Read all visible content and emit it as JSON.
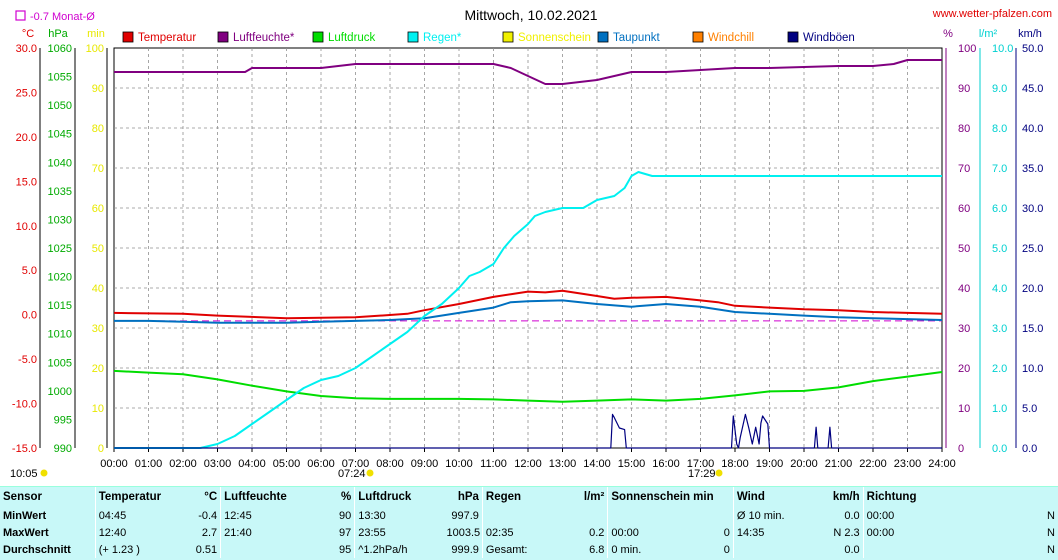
{
  "header": {
    "title": "Mittwoch, 10.02.2021",
    "site": "www.wetter-pfalzen.com",
    "frost_note": "-0.7 Monat-Ø",
    "time_left": "10:05",
    "sunrise": "07:24",
    "sunset": "17:29"
  },
  "colors": {
    "temperature": "#e00000",
    "humidity": "#800080",
    "pressure": "#00dd00",
    "rain": "#00f0f0",
    "sunshine": "#f0f000",
    "dewpoint": "#0070c0",
    "windchill": "#ff8000",
    "gusts": "#000080",
    "grid": "#909090",
    "stats_bg": "#c8f8f8"
  },
  "chart_data": {
    "type": "line",
    "title": "Mittwoch, 10.02.2021",
    "x_ticks": [
      "00:00",
      "01:00",
      "02:00",
      "03:00",
      "04:00",
      "05:00",
      "06:00",
      "07:00",
      "08:00",
      "09:00",
      "10:00",
      "11:00",
      "12:00",
      "13:00",
      "14:00",
      "15:00",
      "16:00",
      "17:00",
      "18:00",
      "19:00",
      "20:00",
      "21:00",
      "22:00",
      "23:00",
      "24:00"
    ],
    "xlim": [
      0,
      24
    ],
    "axes": [
      {
        "side": "left",
        "unit": "°C",
        "ylim": [
          -15,
          30
        ],
        "ticks": [
          "-15.0",
          "-10.0",
          "-5.0",
          "0.0",
          "5.0",
          "10.0",
          "15.0",
          "20.0",
          "25.0",
          "30.0"
        ],
        "color": "#e00000"
      },
      {
        "side": "left",
        "unit": "hPa",
        "ylim": [
          990,
          1060
        ],
        "ticks": [
          "990",
          "995",
          "1000",
          "1005",
          "1010",
          "1015",
          "1020",
          "1025",
          "1030",
          "1035",
          "1040",
          "1045",
          "1050",
          "1055",
          "1060"
        ],
        "color": "#00aa00"
      },
      {
        "side": "left",
        "unit": "min",
        "ylim": [
          0,
          100
        ],
        "ticks": [
          "0",
          "10",
          "20",
          "30",
          "40",
          "50",
          "60",
          "70",
          "80",
          "90",
          "100"
        ],
        "color": "#e8e800"
      },
      {
        "side": "right",
        "unit": "%",
        "ylim": [
          0,
          100
        ],
        "ticks": [
          "0",
          "10",
          "20",
          "30",
          "40",
          "50",
          "60",
          "70",
          "80",
          "90",
          "100"
        ],
        "color": "#800080"
      },
      {
        "side": "right",
        "unit": "l/m²",
        "ylim": [
          0,
          10
        ],
        "ticks": [
          "0.0",
          "1.0",
          "2.0",
          "3.0",
          "4.0",
          "5.0",
          "6.0",
          "7.0",
          "8.0",
          "9.0",
          "10.0"
        ],
        "color": "#00d0d0"
      },
      {
        "side": "right",
        "unit": "km/h",
        "ylim": [
          0,
          50
        ],
        "ticks": [
          "0.0",
          "5.0",
          "10.0",
          "15.0",
          "20.0",
          "25.0",
          "30.0",
          "35.0",
          "40.0",
          "45.0",
          "50.0"
        ],
        "color": "#000080"
      }
    ],
    "legend": [
      "Temperatur",
      "Luftfeuchte*",
      "Luftdruck",
      "Regen*",
      "Sonnenschein",
      "Taupunkt",
      "Windchill",
      "Windböen"
    ],
    "grid": true,
    "frost_line": -0.7,
    "series": [
      {
        "name": "Temperatur",
        "axis": 0,
        "color": "#e00000",
        "x": [
          0,
          2,
          3,
          5,
          7,
          8.5,
          9,
          10,
          11,
          11.5,
          12,
          12.5,
          13,
          14,
          14.5,
          15,
          16,
          17,
          17.5,
          18,
          19,
          20,
          21,
          22,
          23,
          24
        ],
        "y": [
          0.2,
          0.1,
          -0.1,
          -0.4,
          -0.3,
          0.1,
          0.5,
          1.2,
          2.0,
          2.3,
          2.6,
          2.5,
          2.7,
          2.1,
          1.8,
          1.9,
          2.0,
          1.6,
          1.4,
          1.0,
          0.8,
          0.6,
          0.5,
          0.3,
          0.2,
          0.1
        ]
      },
      {
        "name": "Taupunkt",
        "axis": 0,
        "color": "#0070c0",
        "x": [
          0,
          1,
          2,
          3,
          4,
          5,
          6,
          7,
          8,
          9,
          10,
          11,
          11.5,
          12,
          13,
          14,
          15,
          16,
          17,
          18,
          19,
          20,
          21,
          22,
          23,
          24
        ],
        "y": [
          -0.7,
          -0.7,
          -0.8,
          -0.9,
          -0.9,
          -0.9,
          -0.8,
          -0.7,
          -0.6,
          -0.4,
          0.2,
          0.8,
          1.4,
          1.5,
          1.6,
          1.2,
          0.9,
          1.2,
          0.9,
          0.3,
          0.1,
          -0.1,
          -0.3,
          -0.4,
          -0.5,
          -0.6
        ]
      },
      {
        "name": "Luftfeuchte*",
        "axis": 3,
        "color": "#800080",
        "x": [
          0,
          3,
          3.8,
          4,
          5,
          6,
          7,
          8,
          10,
          11,
          11.5,
          12,
          12.5,
          13,
          14,
          14.5,
          15,
          16,
          17,
          18,
          19,
          21,
          22,
          22.6,
          23,
          24
        ],
        "y": [
          94,
          94,
          94,
          95,
          95,
          95,
          96,
          96,
          96,
          96,
          95,
          93,
          91,
          91,
          92,
          93,
          94,
          94,
          94.5,
          95,
          95,
          95.5,
          95.5,
          96,
          97,
          97
        ]
      },
      {
        "name": "Luftdruck",
        "axis": 1,
        "color": "#00dd00",
        "x": [
          0,
          1,
          2,
          3,
          4,
          5,
          6,
          7,
          8,
          9,
          10,
          11,
          12,
          13,
          14,
          15,
          16,
          17,
          18,
          19,
          20,
          21,
          22,
          23,
          24
        ],
        "y": [
          1003.5,
          1003.2,
          1002.9,
          1002.0,
          1000.9,
          999.9,
          999.1,
          998.7,
          998.6,
          998.6,
          998.6,
          998.5,
          998.3,
          998.1,
          998.3,
          998.5,
          998.3,
          998.6,
          999.2,
          999.9,
          1000.0,
          1000.6,
          1001.7,
          1002.5,
          1003.3
        ]
      },
      {
        "name": "Regen*",
        "axis": 4,
        "color": "#00f0f0",
        "x": [
          0,
          2.5,
          3,
          3.5,
          4,
          4.5,
          5,
          5.5,
          6,
          6.5,
          7,
          7.5,
          8,
          8.5,
          9,
          9.5,
          10,
          10.3,
          10.6,
          11,
          11.3,
          11.6,
          12,
          12.2,
          12.5,
          13,
          13.6,
          14,
          14.5,
          14.8,
          15,
          15.2,
          15.6,
          16,
          17,
          18,
          19,
          20,
          21,
          22,
          23,
          24
        ],
        "y": [
          0,
          0,
          0.1,
          0.3,
          0.6,
          0.9,
          1.2,
          1.5,
          1.7,
          1.8,
          2.0,
          2.3,
          2.6,
          2.9,
          3.3,
          3.6,
          4.0,
          4.3,
          4.4,
          4.6,
          5.0,
          5.3,
          5.6,
          5.8,
          5.9,
          6.0,
          6.0,
          6.2,
          6.3,
          6.5,
          6.8,
          6.9,
          6.8,
          6.8,
          6.8,
          6.8,
          6.8,
          6.8,
          6.8,
          6.8,
          6.8,
          6.8
        ]
      },
      {
        "name": "Windböen",
        "axis": 5,
        "color": "#000080",
        "x": [
          0,
          14.4,
          14.45,
          14.5,
          14.65,
          14.8,
          14.85,
          14.9,
          17.9,
          17.95,
          18.05,
          18.1,
          18.15,
          18.3,
          18.4,
          18.5,
          18.6,
          18.7,
          18.75,
          18.8,
          18.95,
          19.0,
          19.05,
          19.1,
          20.3,
          20.35,
          20.4,
          20.45,
          20.7,
          20.75,
          20.8,
          20.85,
          24
        ],
        "y": [
          0,
          0,
          4.2,
          3.8,
          2.5,
          2.3,
          0,
          0,
          0,
          4.0,
          0.5,
          0,
          1.3,
          4.2,
          2.5,
          0.5,
          2.6,
          0.5,
          3.1,
          4.0,
          3.0,
          0,
          0,
          0,
          0,
          2.6,
          0,
          0,
          0,
          2.6,
          0,
          0,
          0
        ]
      }
    ]
  },
  "table": {
    "headers": [
      "Sensor",
      "Temperatur",
      "°C",
      "Luftfeuchte",
      "%",
      "Luftdruck",
      "hPa",
      "Regen",
      "l/m²",
      "Sonnenschein min",
      "Wind",
      "km/h",
      "Richtung"
    ],
    "rows": [
      [
        "MinWert",
        "04:45",
        "-0.4",
        "12:45",
        "90",
        "13:30",
        "997.9",
        "",
        "",
        "",
        "Ø 10 min.",
        "0.0",
        "00:00",
        "N"
      ],
      [
        "MaxWert",
        "12:40",
        "2.7",
        "21:40",
        "97",
        "23:55",
        "1003.5",
        "02:35",
        "0.2",
        "00:00",
        "0",
        "14:35",
        "N 2.3",
        "00:00",
        "N"
      ],
      [
        "Durchschnitt",
        "(+ 1.23 )",
        "0.51",
        "",
        "95",
        "^1.2hPa/h",
        "999.9",
        "Gesamt:",
        "6.8",
        "0 min.",
        "0",
        "",
        "0.0",
        "",
        "N"
      ]
    ]
  }
}
